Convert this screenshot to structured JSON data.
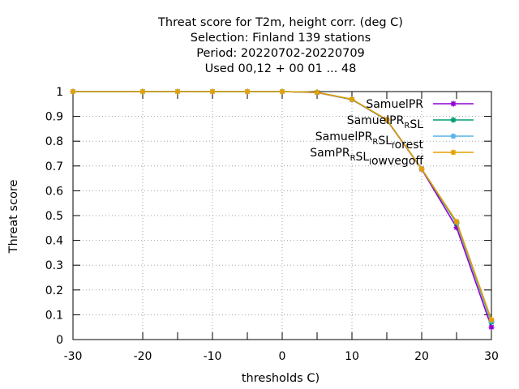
{
  "chart_data": {
    "type": "line",
    "title_lines": [
      "Threat score  for T2m, height corr. (deg C)",
      "Selection: Finland    139 stations",
      "Period: 20220702-20220709",
      "Used  00,12  + 00 01 ... 48"
    ],
    "xlabel": "thresholds C)",
    "ylabel": "Threat score",
    "xlim": [
      -30,
      30
    ],
    "ylim": [
      0,
      1
    ],
    "x_ticks": [
      -30,
      -20,
      -10,
      0,
      10,
      20,
      30
    ],
    "y_ticks": [
      0,
      0.1,
      0.2,
      0.3,
      0.4,
      0.5,
      0.6,
      0.7,
      0.8,
      0.9,
      1
    ],
    "x_tick_labels": [
      "-30",
      "-20",
      "-10",
      "0",
      "10",
      "20",
      "30"
    ],
    "y_tick_labels": [
      "0",
      "0.1",
      "0.2",
      "0.3",
      "0.4",
      "0.5",
      "0.6",
      "0.7",
      "0.8",
      "0.9",
      "1"
    ],
    "grid": true,
    "legend_position": "top-right",
    "x": [
      -30,
      -20,
      -15,
      -10,
      -5,
      0,
      5,
      10,
      15,
      20,
      25,
      30
    ],
    "series": [
      {
        "name": "SamuelPR",
        "legend_parts": [
          [
            "SamuelPR",
            ""
          ]
        ],
        "color": "#9400d3",
        "values": [
          1,
          1,
          1,
          1,
          1,
          1,
          0.996,
          0.968,
          0.885,
          0.687,
          0.452,
          0.05
        ]
      },
      {
        "name": "SamuelPR_RSL",
        "legend_parts": [
          [
            "SamuelPR",
            "R"
          ],
          [
            "SL",
            ""
          ]
        ],
        "color": "#009e73",
        "values": [
          1,
          1,
          1,
          1,
          1,
          1,
          0.997,
          0.968,
          0.886,
          0.688,
          0.47,
          0.07
        ]
      },
      {
        "name": "SamuelPR_RSL_forest",
        "legend_parts": [
          [
            "SamuelPR",
            "R"
          ],
          [
            "SL",
            "f"
          ],
          [
            "orest",
            ""
          ]
        ],
        "color": "#56b4e9",
        "values": [
          1,
          1,
          1,
          1,
          1,
          1,
          0.997,
          0.969,
          0.887,
          0.689,
          0.474,
          0.075
        ]
      },
      {
        "name": "SamPR_RSL_lowvegoff",
        "legend_parts": [
          [
            "SamPR",
            "R"
          ],
          [
            "SL",
            "l"
          ],
          [
            "owvegoff",
            ""
          ]
        ],
        "color": "#e69f00",
        "values": [
          1,
          1,
          1,
          1,
          1,
          1,
          0.997,
          0.969,
          0.887,
          0.688,
          0.476,
          0.08
        ]
      }
    ]
  }
}
